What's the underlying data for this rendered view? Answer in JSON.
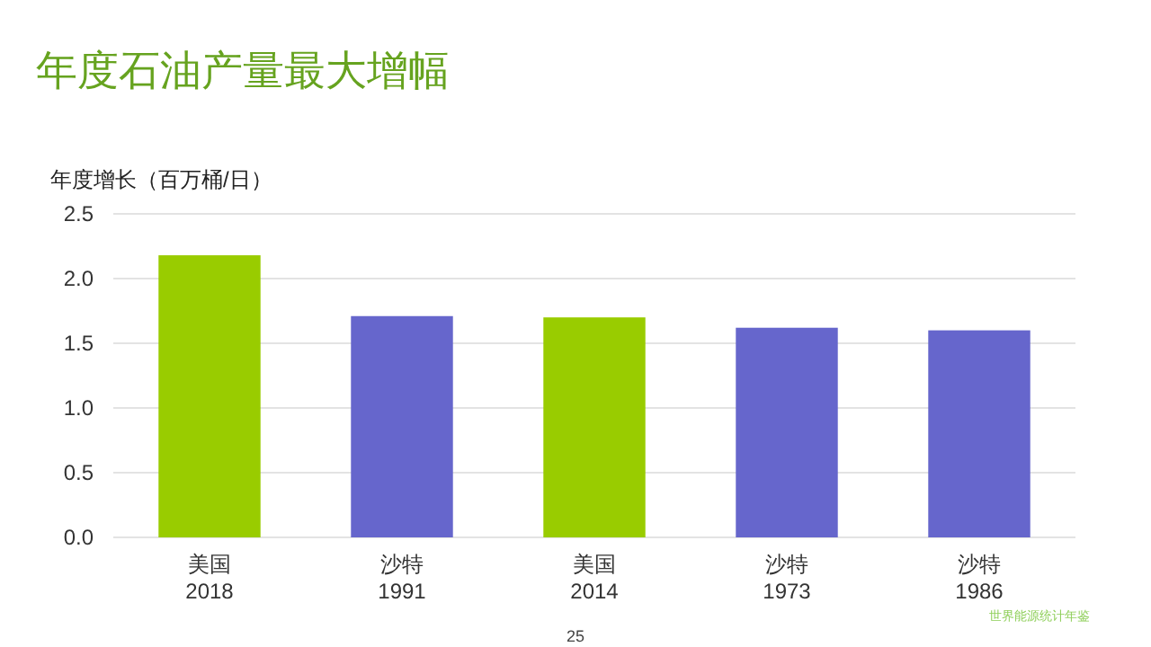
{
  "chart_data": {
    "type": "bar",
    "title": "年度石油产量最大增幅",
    "ylabel": "年度增长（百万桶/日）",
    "categories": [
      "美国\n2018",
      "沙特\n1991",
      "美国\n2014",
      "沙特\n1973",
      "沙特\n1986"
    ],
    "values": [
      2.18,
      1.71,
      1.7,
      1.62,
      1.6
    ],
    "colors": [
      "#99cc00",
      "#6666cc",
      "#99cc00",
      "#6666cc",
      "#6666cc"
    ],
    "ylim": [
      0,
      2.5
    ],
    "yticks": [
      {
        "value": 0,
        "label": "0.0"
      },
      {
        "value": 0.5,
        "label": "0.5"
      },
      {
        "value": 1,
        "label": "1.0"
      },
      {
        "value": 1.5,
        "label": "1.5"
      },
      {
        "value": 2,
        "label": "2.0"
      },
      {
        "value": 2.5,
        "label": "2.5"
      }
    ],
    "grid": "y",
    "annotations": [
      "25",
      "世界能源统计年鉴"
    ]
  }
}
